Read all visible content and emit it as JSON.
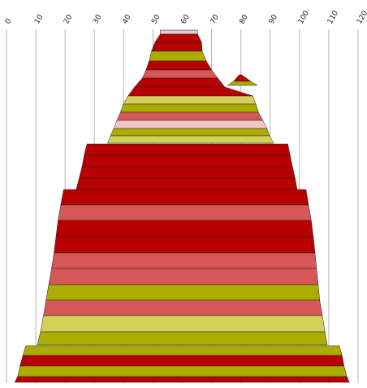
{
  "chart_data": {
    "type": "area",
    "xlim": [
      0,
      120
    ],
    "x_ticks": [
      "0",
      "10",
      "20",
      "30",
      "40",
      "50",
      "60",
      "70",
      "80",
      "90",
      "100",
      "110",
      "120"
    ],
    "grid": true,
    "colors": {
      "dark_red": "#b80000",
      "salmon": "#d55757",
      "olive": "#acac00",
      "light_olive": "#d5d057",
      "pale_pink": "#f2c6c6",
      "grid": "#b4b4b4",
      "outline": "#222222"
    },
    "bands": [
      {
        "from": [
          52.5,
          65.2
        ],
        "to": [
          52.5,
          65.2
        ],
        "color": "pale_pink"
      },
      {
        "from": [
          52.5,
          65.2
        ],
        "to": [
          50.7,
          66.6
        ],
        "color": "dark_red"
      },
      {
        "from": [
          50.7,
          66.6
        ],
        "to": [
          49.5,
          66.8
        ],
        "color": "dark_red"
      },
      {
        "from": [
          49.5,
          66.8
        ],
        "to": [
          48.7,
          68.2
        ],
        "color": "olive"
      },
      {
        "from": [
          48.7,
          68.2
        ],
        "to": [
          47.6,
          70.0
        ],
        "color": "dark_red"
      },
      {
        "from": [
          47.6,
          70.0
        ],
        "to": [
          46.4,
          72.1
        ],
        "color": "salmon"
      },
      {
        "from": [
          46.4,
          72.1
        ],
        "to": [
          43.7,
          74.5
        ],
        "color": "dark_red"
      },
      {
        "from": [
          43.7,
          74.5
        ],
        "to": [
          41.5,
          84.1
        ],
        "color": "dark_red"
      },
      {
        "from": [
          41.5,
          84.1
        ],
        "to": [
          39.9,
          85.1
        ],
        "color": "light_olive"
      },
      {
        "from": [
          39.9,
          85.1
        ],
        "to": [
          38.9,
          86.0
        ],
        "color": "olive"
      },
      {
        "from": [
          38.9,
          86.0
        ],
        "to": [
          37.7,
          87.5
        ],
        "color": "salmon"
      },
      {
        "from": [
          37.7,
          87.5
        ],
        "to": [
          36.6,
          88.9
        ],
        "color": "pale_pink"
      },
      {
        "from": [
          36.6,
          88.9
        ],
        "to": [
          35.5,
          89.8
        ],
        "color": "olive"
      },
      {
        "from": [
          35.5,
          89.8
        ],
        "to": [
          34.5,
          91.2
        ],
        "color": "light_olive"
      },
      {
        "from": [
          27.5,
          96.0
        ],
        "to": [
          26.5,
          96.8
        ],
        "color": "dark_red"
      },
      {
        "from": [
          26.5,
          96.8
        ],
        "to": [
          25.8,
          97.6
        ],
        "color": "dark_red"
      },
      {
        "from": [
          25.8,
          97.6
        ],
        "to": [
          24.8,
          98.5
        ],
        "color": "dark_red"
      },
      {
        "from": [
          24.8,
          98.5
        ],
        "to": [
          23.8,
          99.2
        ],
        "color": "dark_red"
      },
      {
        "from": [
          19.5,
          102.2
        ],
        "to": [
          18.5,
          103.1
        ],
        "color": "dark_red"
      },
      {
        "from": [
          18.5,
          103.1
        ],
        "to": [
          17.6,
          104.0
        ],
        "color": "salmon"
      },
      {
        "from": [
          17.6,
          104.0
        ],
        "to": [
          16.9,
          104.7
        ],
        "color": "dark_red"
      },
      {
        "from": [
          16.9,
          104.7
        ],
        "to": [
          16.2,
          105.3
        ],
        "color": "dark_red"
      },
      {
        "from": [
          16.2,
          105.3
        ],
        "to": [
          15.4,
          105.8
        ],
        "color": "salmon"
      },
      {
        "from": [
          15.4,
          105.8
        ],
        "to": [
          14.4,
          106.4
        ],
        "color": "salmon"
      },
      {
        "from": [
          14.4,
          106.4
        ],
        "to": [
          13.5,
          106.9
        ],
        "color": "olive"
      },
      {
        "from": [
          13.5,
          106.9
        ],
        "to": [
          12.6,
          107.8
        ],
        "color": "salmon"
      },
      {
        "from": [
          12.6,
          107.8
        ],
        "to": [
          11.6,
          108.7
        ],
        "color": "light_olive"
      },
      {
        "from": [
          11.6,
          108.7
        ],
        "to": [
          10.5,
          109.5
        ],
        "color": "olive"
      },
      {
        "from": [
          6.6,
          113.6
        ],
        "to": [
          5.6,
          114.5
        ],
        "color": "olive"
      },
      {
        "from": [
          5.6,
          114.5
        ],
        "to": [
          4.6,
          115.2
        ],
        "color": "dark_red"
      },
      {
        "from": [
          4.6,
          115.2
        ],
        "to": [
          3.8,
          116.2
        ],
        "color": "olive"
      },
      {
        "from": [
          3.8,
          116.2
        ],
        "to": [
          2.8,
          117.0
        ],
        "color": "dark_red"
      }
    ],
    "side_peak": {
      "from": [
        79.4,
        80.3
      ],
      "to": [
        75.5,
        85.6
      ],
      "inner": [
        77.5,
        83.4
      ]
    }
  }
}
